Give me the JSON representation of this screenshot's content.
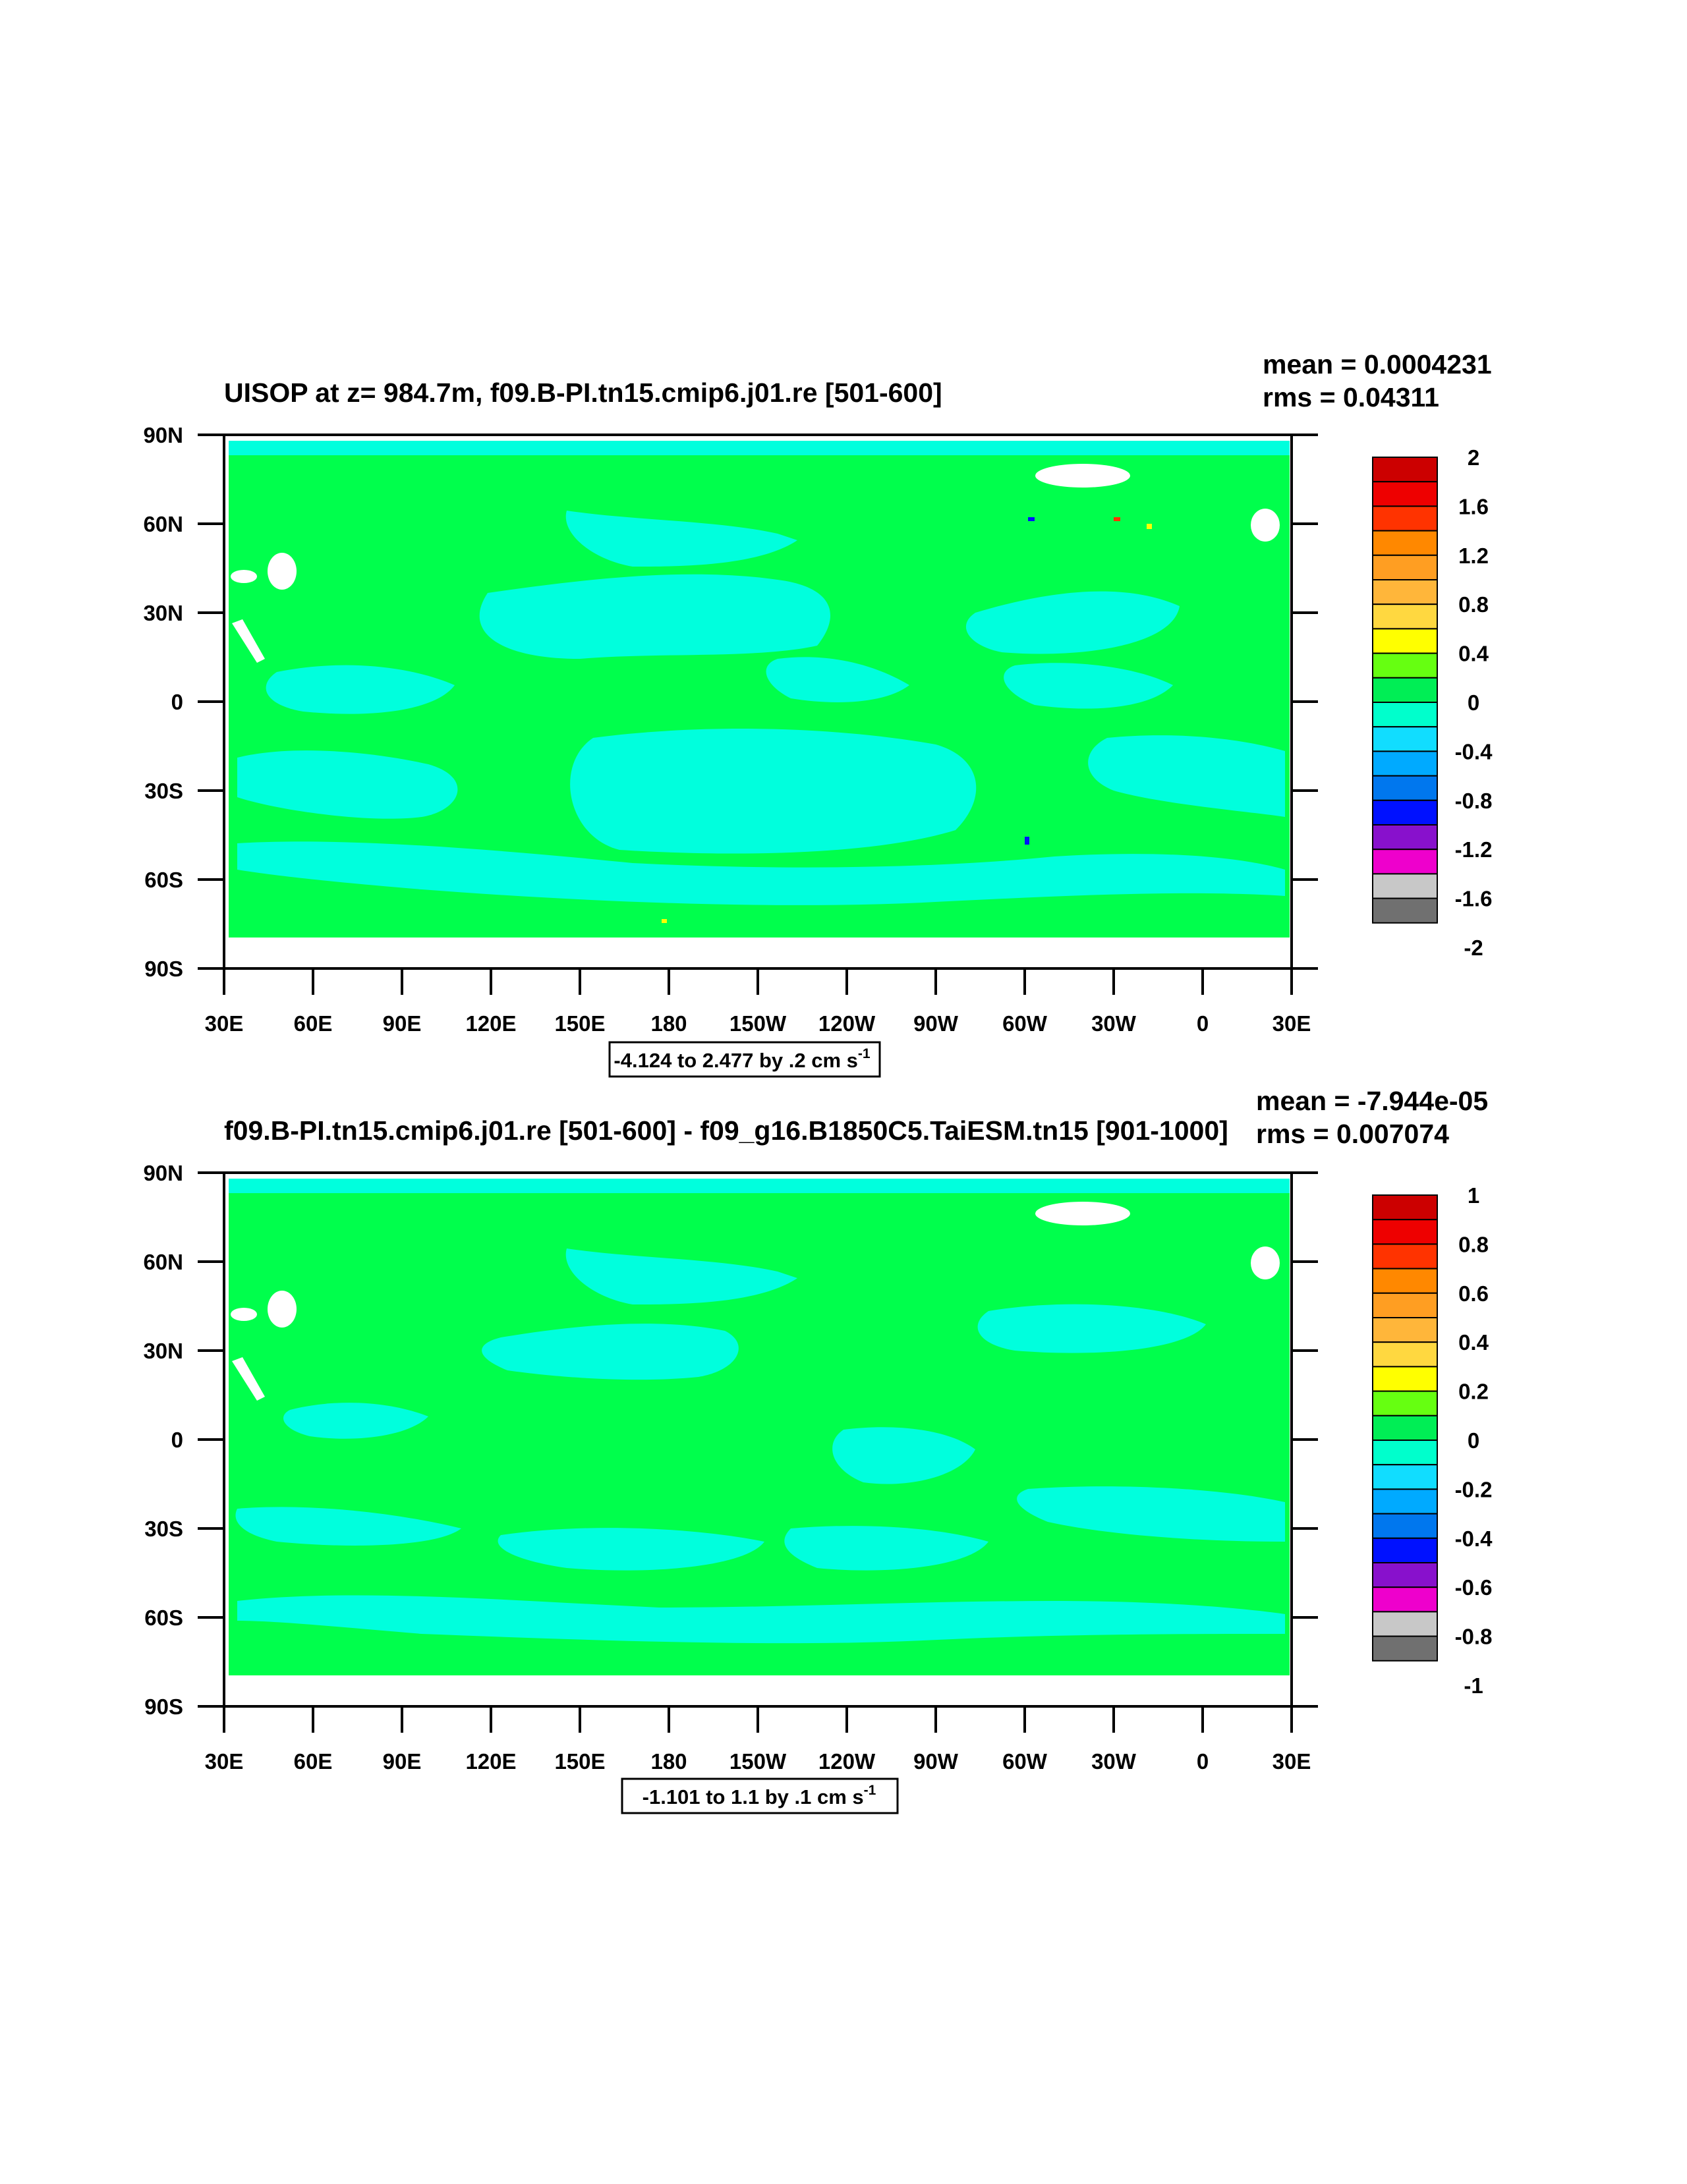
{
  "chart_data": [
    {
      "type": "heatmap",
      "title": "UISOP at z= 984.7m, f09.B-PI.tn15.cmip6.j01.re [501-600]",
      "stats": {
        "mean": "mean = 0.0004231",
        "rms": "rms = 0.04311"
      },
      "range_label": "-4.124 to 2.477 by .2 cm s",
      "range_sup": "-1",
      "x_ticks": [
        "30E",
        "60E",
        "90E",
        "120E",
        "150E",
        "180",
        "150W",
        "120W",
        "90W",
        "60W",
        "30W",
        "0",
        "30E"
      ],
      "y_ticks": [
        "90N",
        "60N",
        "30N",
        "0",
        "30S",
        "60S",
        "90S"
      ],
      "colorbar_labels": [
        "2",
        "1.6",
        "1.2",
        "0.8",
        "0.4",
        "0",
        "-0.4",
        "-0.8",
        "-1.2",
        "-1.6",
        "-2"
      ],
      "dominant_value": "slightly positive (0 to 0.4) over most of the domain, with bands of slightly negative (-0.4 to 0) values"
    },
    {
      "type": "heatmap",
      "title": "f09.B-PI.tn15.cmip6.j01.re [501-600] - f09_g16.B1850C5.TaiESM.tn15 [901-1000]",
      "stats": {
        "mean": "mean = -7.944e-05",
        "rms": "rms = 0.007074"
      },
      "range_label": "-1.101 to 1.1 by .1 cm s",
      "range_sup": "-1",
      "x_ticks": [
        "30E",
        "60E",
        "90E",
        "120E",
        "150E",
        "180",
        "150W",
        "120W",
        "90W",
        "60W",
        "30W",
        "0",
        "30E"
      ],
      "y_ticks": [
        "90N",
        "60N",
        "30N",
        "0",
        "30S",
        "60S",
        "90S"
      ],
      "colorbar_labels": [
        "1",
        "0.8",
        "0.6",
        "0.4",
        "0.2",
        "0",
        "-0.2",
        "-0.4",
        "-0.6",
        "-0.8",
        "-1"
      ],
      "dominant_value": "slightly positive (0 to 0.2) over most of the domain, with bands of slightly negative (-0.2 to 0) values"
    }
  ],
  "colors": {
    "palette": [
      "#cc0000",
      "#ee0000",
      "#ff3300",
      "#ff8800",
      "#ff9e22",
      "#ffb63a",
      "#ffd840",
      "#ffff00",
      "#66ff11",
      "#00ee55",
      "#00ffcc",
      "#11ddff",
      "#00aaff",
      "#0077ee",
      "#0011ff",
      "#8811cc",
      "#ee00cc",
      "#c8c8c8",
      "#707070"
    ],
    "positive_small": "#00ff4c",
    "negative_small": "#00ffdd",
    "land_mask": "#ffffff"
  }
}
